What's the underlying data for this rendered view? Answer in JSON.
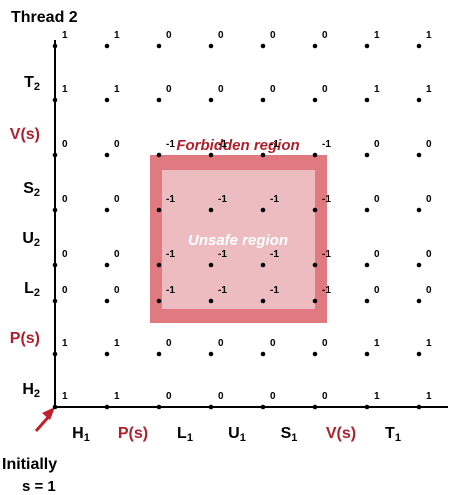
{
  "title": "Thread 2",
  "initial_label": "Initially",
  "initial_state": "s = 1",
  "regions": {
    "forbidden": "Forbidden region",
    "unsafe": "Unsafe region"
  },
  "colors": {
    "red_text": "#b0202c",
    "forbidden_fill": "#e07a80",
    "unsafe_fill": "#ecbcc1",
    "arrow": "#c0202c"
  },
  "x_axis": [
    {
      "name": "H",
      "sub": "1",
      "red": false
    },
    {
      "name": "P(s)",
      "sub": "",
      "red": true
    },
    {
      "name": "L",
      "sub": "1",
      "red": false
    },
    {
      "name": "U",
      "sub": "1",
      "red": false
    },
    {
      "name": "S",
      "sub": "1",
      "red": false
    },
    {
      "name": "V(s)",
      "sub": "",
      "red": true
    },
    {
      "name": "T",
      "sub": "1",
      "red": false
    }
  ],
  "y_axis": [
    {
      "name": "H",
      "sub": "2",
      "red": false
    },
    {
      "name": "P(s)",
      "sub": "",
      "red": true
    },
    {
      "name": "L",
      "sub": "2",
      "red": false
    },
    {
      "name": "U",
      "sub": "2",
      "red": false
    },
    {
      "name": "S",
      "sub": "2",
      "red": false
    },
    {
      "name": "V(s)",
      "sub": "",
      "red": true
    },
    {
      "name": "T",
      "sub": "2",
      "red": false
    }
  ],
  "grid_values": [
    [
      "1",
      "1",
      "0",
      "0",
      "0",
      "0",
      "1",
      "1"
    ],
    [
      "1",
      "1",
      "0",
      "0",
      "0",
      "0",
      "1",
      "1"
    ],
    [
      "0",
      "0",
      "-1",
      "-1",
      "-1",
      "-1",
      "0",
      "0"
    ],
    [
      "0",
      "0",
      "-1",
      "-1",
      "-1",
      "-1",
      "0",
      "0"
    ],
    [
      "0",
      "0",
      "-1",
      "-1",
      "-1",
      "-1",
      "0",
      "0"
    ],
    [
      "0",
      "0",
      "-1",
      "-1",
      "-1",
      "-1",
      "0",
      "0"
    ],
    [
      "1",
      "1",
      "0",
      "0",
      "0",
      "0",
      "1",
      "1"
    ],
    [
      "1",
      "1",
      "0",
      "0",
      "0",
      "0",
      "1",
      "1"
    ]
  ]
}
